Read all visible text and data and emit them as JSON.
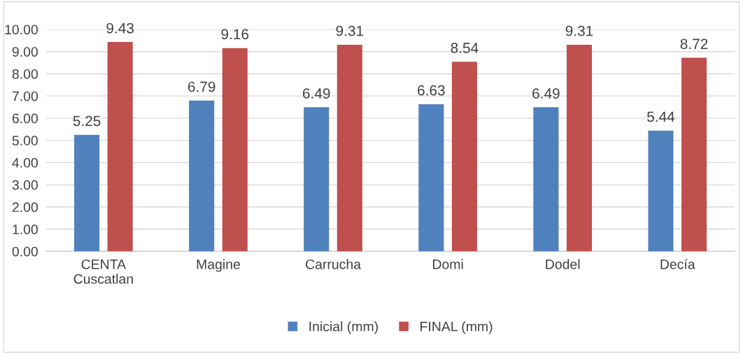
{
  "chart_data": {
    "type": "bar",
    "categories": [
      "CENTA\nCuscatlan",
      "Magine",
      "Carrucha",
      "Domi",
      "Dodel",
      "Decía"
    ],
    "series": [
      {
        "name": "Inicial (mm)",
        "color": "#4f81bd",
        "values": [
          5.25,
          6.79,
          6.49,
          6.63,
          6.49,
          5.44
        ]
      },
      {
        "name": "FINAL (mm)",
        "color": "#c0504d",
        "values": [
          9.43,
          9.16,
          9.31,
          8.54,
          9.31,
          8.72
        ]
      }
    ],
    "ylim": [
      0,
      10
    ],
    "yticks": [
      {
        "value": 0,
        "label": "0.00"
      },
      {
        "value": 1,
        "label": "1.00"
      },
      {
        "value": 2,
        "label": "2.00"
      },
      {
        "value": 3,
        "label": "3.00"
      },
      {
        "value": 4,
        "label": "4.00"
      },
      {
        "value": 5,
        "label": "5.00"
      },
      {
        "value": 6,
        "label": "6.00"
      },
      {
        "value": 7,
        "label": "7.00"
      },
      {
        "value": 8,
        "label": "8.00"
      },
      {
        "value": 9,
        "label": "9.00"
      },
      {
        "value": 10,
        "label": "10.00"
      }
    ],
    "grid": "y",
    "legend": "bottom",
    "data_labels": true
  }
}
